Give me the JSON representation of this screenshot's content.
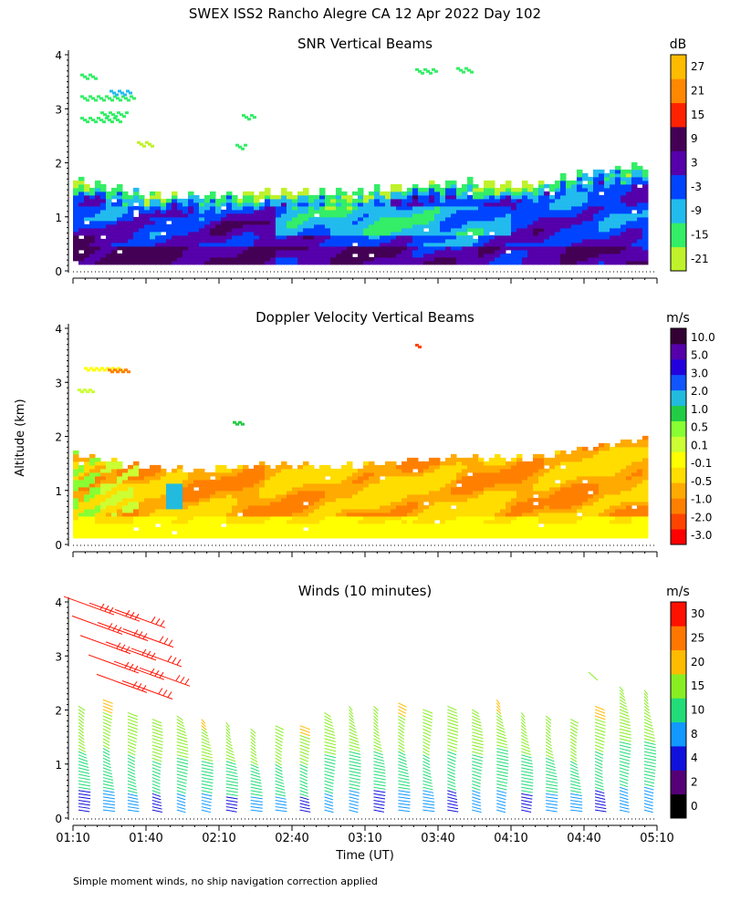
{
  "page": {
    "title": "SWEX ISS2 Rancho Alegre CA  12 Apr 2022 Day 102",
    "footnote": "Simple moment winds, no ship navigation correction applied",
    "y_axis_label": "Altitude (km)",
    "x_axis_label": "Time (UT)"
  },
  "colors": {
    "snr_scale": [
      "#bff22a",
      "#33ee66",
      "#22bbee",
      "#0044ff",
      "#5500aa",
      "#440055",
      "#ff2200",
      "#ff8800",
      "#ffbb00"
    ],
    "vel_scale": [
      "#ff0000",
      "#ff4400",
      "#ff8000",
      "#ffaa00",
      "#ffdd00",
      "#ffff00",
      "#ccff33",
      "#88ff33",
      "#22cc44",
      "#22bbdd",
      "#1155ff",
      "#2200dd",
      "#5500aa",
      "#330033"
    ],
    "wind_scale": [
      "#000000",
      "#550077",
      "#1111dd",
      "#1199ff",
      "#22dd77",
      "#88ee22",
      "#ffbb00",
      "#ff7700",
      "#ff1100"
    ]
  },
  "chart_data": [
    {
      "type": "heatmap",
      "title": "SNR Vertical Beams",
      "ylabel": "",
      "xlim": [
        "01:10",
        "05:10"
      ],
      "ylim": [
        0,
        4
      ],
      "x_ticks": [
        "01:10",
        "01:40",
        "02:10",
        "02:40",
        "03:10",
        "03:40",
        "04:10",
        "04:40",
        "05:10"
      ],
      "y_ticks": [
        "0",
        "1",
        "2",
        "3",
        "4"
      ],
      "colorbar_unit": "dB",
      "colorbar_ticks": [
        "27",
        "21",
        "15",
        "9",
        "3",
        "-3",
        "-9",
        "-15",
        "-21"
      ],
      "data_top_km": [
        1.65,
        1.4,
        1.35,
        1.45,
        1.4,
        1.5,
        1.6,
        1.55,
        1.8,
        1.95
      ]
    },
    {
      "type": "heatmap",
      "title": "Doppler Velocity Vertical Beams",
      "ylabel": "",
      "xlim": [
        "01:10",
        "05:10"
      ],
      "ylim": [
        0,
        4
      ],
      "x_ticks": [
        "01:10",
        "01:40",
        "02:10",
        "02:40",
        "03:10",
        "03:40",
        "04:10",
        "04:40",
        "05:10"
      ],
      "y_ticks": [
        "0",
        "1",
        "2",
        "3",
        "4"
      ],
      "colorbar_unit": "m/s",
      "colorbar_ticks": [
        "10.0",
        "5.0",
        "3.0",
        "2.0",
        "1.0",
        "0.5",
        "0.1",
        "-0.1",
        "-0.5",
        "-1.0",
        "-2.0",
        "-3.0"
      ]
    },
    {
      "type": "scatter",
      "title": "Winds (10 minutes)",
      "ylabel": "",
      "xlim": [
        "01:10",
        "05:10"
      ],
      "ylim": [
        0,
        4
      ],
      "x_ticks": [
        "01:10",
        "01:40",
        "02:10",
        "02:40",
        "03:10",
        "03:40",
        "04:10",
        "04:40",
        "05:10"
      ],
      "y_ticks": [
        "0",
        "1",
        "2",
        "3",
        "4"
      ],
      "colorbar_unit": "m/s",
      "colorbar_ticks": [
        "30",
        "25",
        "20",
        "15",
        "10",
        "8",
        "4",
        "2",
        "0"
      ],
      "profile_times": [
        "01:10",
        "01:20",
        "01:30",
        "01:40",
        "01:50",
        "02:00",
        "02:10",
        "02:20",
        "02:30",
        "02:40",
        "02:50",
        "03:00",
        "03:10",
        "03:20",
        "03:30",
        "03:40",
        "03:50",
        "04:00",
        "04:10",
        "04:20",
        "04:30",
        "04:40",
        "04:50",
        "05:00"
      ],
      "profile_top_km": [
        2.1,
        2.2,
        2.0,
        1.85,
        1.9,
        1.85,
        1.8,
        1.7,
        1.75,
        1.75,
        2.0,
        2.1,
        2.1,
        2.15,
        2.05,
        2.1,
        2.05,
        2.2,
        2.0,
        1.95,
        1.85,
        2.1,
        2.45,
        2.4
      ]
    }
  ]
}
